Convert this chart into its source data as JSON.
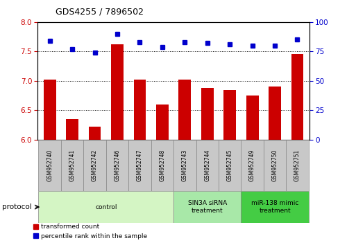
{
  "title": "GDS4255 / 7896502",
  "samples": [
    "GSM952740",
    "GSM952741",
    "GSM952742",
    "GSM952746",
    "GSM952747",
    "GSM952748",
    "GSM952743",
    "GSM952744",
    "GSM952745",
    "GSM952749",
    "GSM952750",
    "GSM952751"
  ],
  "red_values": [
    7.02,
    6.35,
    6.22,
    7.62,
    7.02,
    6.6,
    7.02,
    6.88,
    6.84,
    6.75,
    6.9,
    7.46
  ],
  "blue_values": [
    84,
    77,
    74,
    90,
    83,
    79,
    83,
    82,
    81,
    80,
    80,
    85
  ],
  "ylim_left": [
    6,
    8
  ],
  "ylim_right": [
    0,
    100
  ],
  "yticks_left": [
    6,
    6.5,
    7,
    7.5,
    8
  ],
  "yticks_right": [
    0,
    25,
    50,
    75,
    100
  ],
  "groups": [
    {
      "label": "control",
      "start": 0,
      "end": 6,
      "color": "#d4f5c4"
    },
    {
      "label": "SIN3A siRNA\ntreatment",
      "start": 6,
      "end": 9,
      "color": "#a8e8a8"
    },
    {
      "label": "miR-138 mimic\ntreatment",
      "start": 9,
      "end": 12,
      "color": "#44cc44"
    }
  ],
  "bar_color": "#cc0000",
  "dot_color": "#0000cc",
  "bar_width": 0.55,
  "protocol_label": "protocol",
  "legend_red": "transformed count",
  "legend_blue": "percentile rank within the sample",
  "left_axis_color": "#cc0000",
  "right_axis_color": "#0000cc",
  "sample_box_color": "#c8c8c8",
  "xlim": [
    -0.55,
    11.55
  ]
}
